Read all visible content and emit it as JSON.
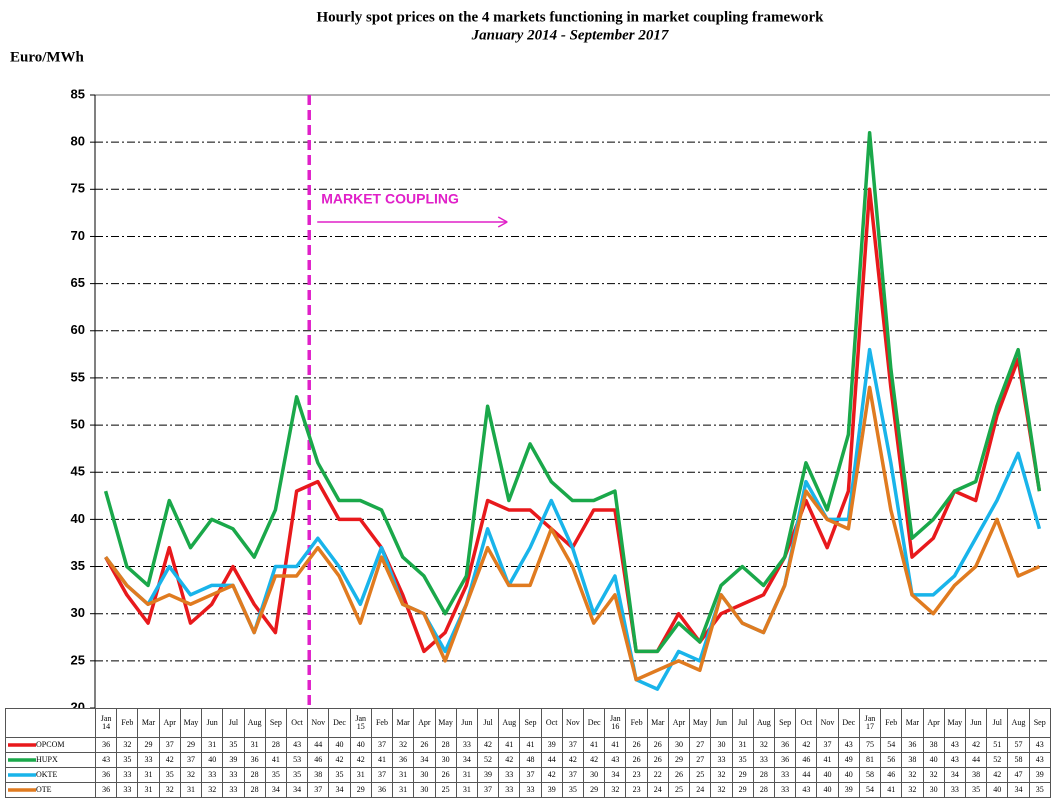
{
  "chart_data": {
    "type": "line",
    "title": "Hourly  spot prices on the 4 markets functioning  in market coupling framework",
    "subtitle": "January 2014 - September 2017",
    "y_label": "Euro/MWh",
    "annotation": "MARKET COUPLING",
    "categories": [
      "Jan 14",
      "Feb",
      "Mar",
      "Apr",
      "May",
      "Jun",
      "Jul",
      "Aug",
      "Sep",
      "Oct",
      "Nov",
      "Dec",
      "Jan 15",
      "Feb",
      "Mar",
      "Apr",
      "May",
      "Jun",
      "Jul",
      "Aug",
      "Sep",
      "Oct",
      "Nov",
      "Dec",
      "Jan 16",
      "Feb",
      "Mar",
      "Apr",
      "May",
      "Jun",
      "Jul",
      "Aug",
      "Sep",
      "Oct",
      "Nov",
      "Dec",
      "Jan 17",
      "Feb",
      "Mar",
      "Apr",
      "May",
      "Jun",
      "Jul",
      "Aug",
      "Sep"
    ],
    "series": [
      {
        "name": "OPCOM",
        "color": "#e8191c",
        "values": [
          36,
          32,
          29,
          37,
          29,
          31,
          35,
          31,
          28,
          43,
          44,
          40,
          40,
          37,
          32,
          26,
          28,
          33,
          42,
          41,
          41,
          39,
          37,
          41,
          41,
          26,
          26,
          30,
          27,
          30,
          31,
          32,
          36,
          42,
          37,
          43,
          75,
          54,
          36,
          38,
          43,
          42,
          51,
          57,
          43
        ]
      },
      {
        "name": "HUPX",
        "color": "#1aa84a",
        "values": [
          43,
          35,
          33,
          42,
          37,
          40,
          39,
          36,
          41,
          53,
          46,
          42,
          42,
          41,
          36,
          34,
          30,
          34,
          52,
          42,
          48,
          44,
          42,
          42,
          43,
          26,
          26,
          29,
          27,
          33,
          35,
          33,
          36,
          46,
          41,
          49,
          81,
          56,
          38,
          40,
          43,
          44,
          52,
          58,
          43
        ]
      },
      {
        "name": "OKTE",
        "color": "#19b4ea",
        "values": [
          36,
          33,
          31,
          35,
          32,
          33,
          33,
          28,
          35,
          35,
          38,
          35,
          31,
          37,
          31,
          30,
          26,
          31,
          39,
          33,
          37,
          42,
          37,
          30,
          34,
          23,
          22,
          26,
          25,
          32,
          29,
          28,
          33,
          44,
          40,
          40,
          58,
          46,
          32,
          32,
          34,
          38,
          42,
          47,
          39
        ]
      },
      {
        "name": "OTE",
        "color": "#e07b20",
        "values": [
          36,
          33,
          31,
          32,
          31,
          32,
          33,
          28,
          34,
          34,
          37,
          34,
          29,
          36,
          31,
          30,
          25,
          31,
          37,
          33,
          33,
          39,
          35,
          29,
          32,
          23,
          24,
          25,
          24,
          32,
          29,
          28,
          33,
          43,
          40,
          39,
          54,
          41,
          32,
          30,
          33,
          35,
          40,
          34,
          35
        ]
      }
    ],
    "ylim": [
      20,
      85
    ],
    "yticks": [
      20,
      25,
      30,
      35,
      40,
      45,
      50,
      55,
      60,
      65,
      70,
      75,
      80,
      85
    ],
    "grid": true
  }
}
